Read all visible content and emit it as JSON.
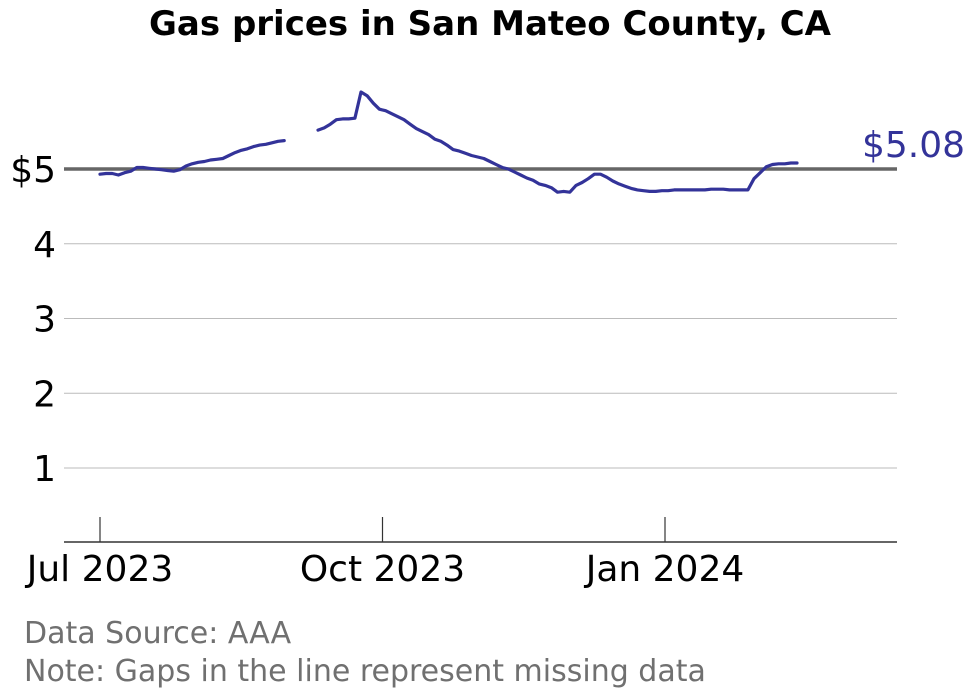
{
  "chart_data": {
    "type": "line",
    "title": "Gas prices in San Mateo County, CA",
    "xlabel": "",
    "ylabel": "",
    "ylim": [
      0,
      6.2
    ],
    "y_ticks": [
      {
        "value": 1,
        "label": "1"
      },
      {
        "value": 2,
        "label": "2"
      },
      {
        "value": 3,
        "label": "3"
      },
      {
        "value": 4,
        "label": "4"
      },
      {
        "value": 5,
        "label": "$5"
      }
    ],
    "x_ticks": [
      {
        "date": "2023-07-01",
        "label": "Jul 2023"
      },
      {
        "date": "2023-10-01",
        "label": "Oct 2023"
      },
      {
        "date": "2024-01-01",
        "label": "Jan 2024"
      }
    ],
    "reference_line": {
      "value": 5
    },
    "last_value_label": "$5.08",
    "line_color": "#333399",
    "reference_color": "#666666",
    "grid_color": "#bbbbbb",
    "series": [
      {
        "segments": [
          [
            [
              "2023-07-01",
              4.93
            ],
            [
              "2023-07-03",
              4.94
            ],
            [
              "2023-07-05",
              4.94
            ],
            [
              "2023-07-07",
              4.92
            ],
            [
              "2023-07-09",
              4.95
            ],
            [
              "2023-07-11",
              4.97
            ],
            [
              "2023-07-13",
              5.02
            ],
            [
              "2023-07-15",
              5.02
            ],
            [
              "2023-07-17",
              5.01
            ],
            [
              "2023-07-19",
              5.0
            ],
            [
              "2023-07-21",
              4.99
            ],
            [
              "2023-07-23",
              4.98
            ],
            [
              "2023-07-25",
              4.97
            ],
            [
              "2023-07-27",
              4.99
            ],
            [
              "2023-07-29",
              5.04
            ],
            [
              "2023-07-31",
              5.07
            ],
            [
              "2023-08-02",
              5.09
            ],
            [
              "2023-08-04",
              5.1
            ],
            [
              "2023-08-06",
              5.12
            ],
            [
              "2023-08-08",
              5.13
            ],
            [
              "2023-08-10",
              5.14
            ],
            [
              "2023-08-12",
              5.18
            ],
            [
              "2023-08-14",
              5.22
            ],
            [
              "2023-08-16",
              5.25
            ],
            [
              "2023-08-18",
              5.27
            ],
            [
              "2023-08-20",
              5.3
            ],
            [
              "2023-08-22",
              5.32
            ],
            [
              "2023-08-24",
              5.33
            ],
            [
              "2023-08-26",
              5.35
            ],
            [
              "2023-08-28",
              5.37
            ],
            [
              "2023-08-30",
              5.38
            ]
          ],
          [
            [
              "2023-09-10",
              5.52
            ],
            [
              "2023-09-12",
              5.55
            ],
            [
              "2023-09-14",
              5.6
            ],
            [
              "2023-09-16",
              5.66
            ],
            [
              "2023-09-18",
              5.67
            ],
            [
              "2023-09-20",
              5.67
            ],
            [
              "2023-09-22",
              5.68
            ],
            [
              "2023-09-24",
              6.03
            ],
            [
              "2023-09-26",
              5.98
            ],
            [
              "2023-09-28",
              5.88
            ],
            [
              "2023-09-30",
              5.8
            ],
            [
              "2023-10-02",
              5.78
            ],
            [
              "2023-10-04",
              5.74
            ],
            [
              "2023-10-06",
              5.7
            ],
            [
              "2023-10-08",
              5.66
            ],
            [
              "2023-10-10",
              5.6
            ],
            [
              "2023-10-12",
              5.54
            ],
            [
              "2023-10-14",
              5.5
            ],
            [
              "2023-10-16",
              5.46
            ],
            [
              "2023-10-18",
              5.4
            ],
            [
              "2023-10-20",
              5.37
            ],
            [
              "2023-10-22",
              5.32
            ],
            [
              "2023-10-24",
              5.26
            ],
            [
              "2023-10-26",
              5.24
            ],
            [
              "2023-10-28",
              5.21
            ],
            [
              "2023-10-30",
              5.18
            ],
            [
              "2023-11-01",
              5.16
            ],
            [
              "2023-11-03",
              5.14
            ],
            [
              "2023-11-05",
              5.1
            ],
            [
              "2023-11-07",
              5.06
            ],
            [
              "2023-11-09",
              5.02
            ],
            [
              "2023-11-11",
              5.0
            ],
            [
              "2023-11-13",
              4.96
            ],
            [
              "2023-11-15",
              4.92
            ],
            [
              "2023-11-17",
              4.88
            ],
            [
              "2023-11-19",
              4.85
            ],
            [
              "2023-11-21",
              4.8
            ],
            [
              "2023-11-23",
              4.78
            ],
            [
              "2023-11-25",
              4.75
            ],
            [
              "2023-11-27",
              4.69
            ],
            [
              "2023-11-29",
              4.7
            ],
            [
              "2023-12-01",
              4.69
            ],
            [
              "2023-12-03",
              4.78
            ],
            [
              "2023-12-05",
              4.82
            ],
            [
              "2023-12-07",
              4.87
            ],
            [
              "2023-12-09",
              4.93
            ],
            [
              "2023-12-11",
              4.93
            ],
            [
              "2023-12-13",
              4.89
            ],
            [
              "2023-12-15",
              4.84
            ],
            [
              "2023-12-17",
              4.8
            ],
            [
              "2023-12-19",
              4.77
            ],
            [
              "2023-12-21",
              4.74
            ],
            [
              "2023-12-23",
              4.72
            ],
            [
              "2023-12-25",
              4.71
            ],
            [
              "2023-12-27",
              4.7
            ],
            [
              "2023-12-29",
              4.7
            ],
            [
              "2023-12-31",
              4.71
            ],
            [
              "2024-01-02",
              4.71
            ],
            [
              "2024-01-04",
              4.72
            ],
            [
              "2024-01-06",
              4.72
            ],
            [
              "2024-01-08",
              4.72
            ],
            [
              "2024-01-10",
              4.72
            ],
            [
              "2024-01-12",
              4.72
            ],
            [
              "2024-01-14",
              4.72
            ],
            [
              "2024-01-16",
              4.73
            ],
            [
              "2024-01-18",
              4.73
            ],
            [
              "2024-01-20",
              4.73
            ],
            [
              "2024-01-22",
              4.72
            ],
            [
              "2024-01-24",
              4.72
            ],
            [
              "2024-01-26",
              4.72
            ],
            [
              "2024-01-28",
              4.72
            ],
            [
              "2024-01-30",
              4.87
            ],
            [
              "2024-02-01",
              4.95
            ],
            [
              "2024-02-03",
              5.03
            ],
            [
              "2024-02-05",
              5.06
            ],
            [
              "2024-02-07",
              5.07
            ],
            [
              "2024-02-09",
              5.07
            ],
            [
              "2024-02-11",
              5.08
            ],
            [
              "2024-02-13",
              5.08
            ]
          ]
        ]
      }
    ]
  },
  "footer": {
    "source": "Data Source: AAA",
    "note": "Note: Gaps in the line represent missing data"
  }
}
